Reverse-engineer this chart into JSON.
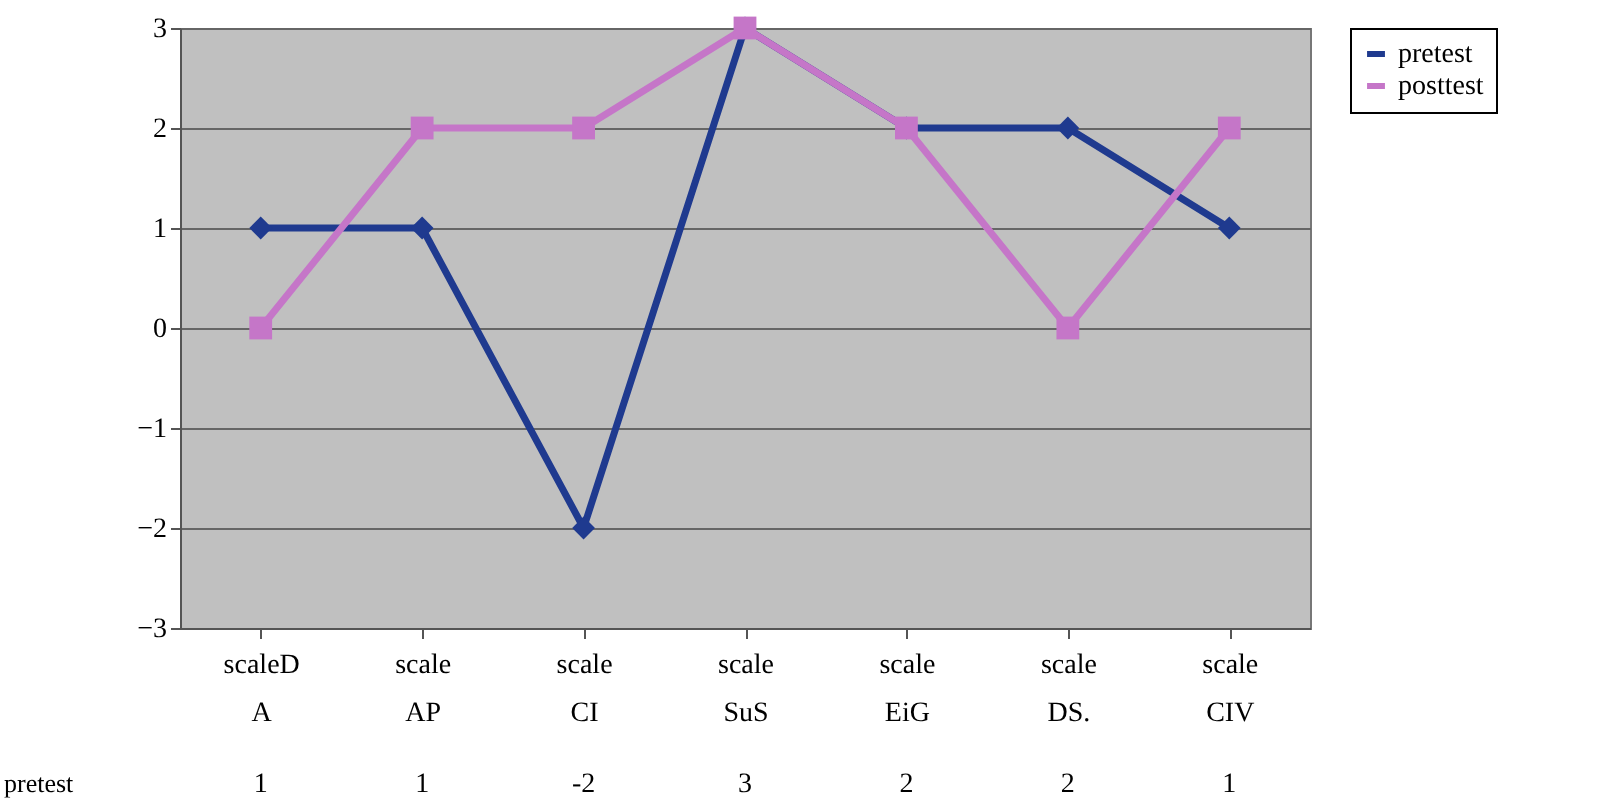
{
  "chart_data": {
    "type": "line",
    "categories": [
      "scaleD A",
      "scale AP",
      "scale CI",
      "scale SuS",
      "scale EiG",
      "scale DS.",
      "scale CIV"
    ],
    "series": [
      {
        "name": "pretest",
        "color": "#1f3a8f",
        "marker": "diamond",
        "values": [
          1,
          1,
          -2,
          3,
          2,
          2,
          1
        ],
        "value_labels": [
          "1",
          "1",
          "-2",
          "3",
          "2",
          "2",
          "1"
        ]
      },
      {
        "name": "posttest",
        "color": "#c576c8",
        "marker": "square",
        "values": [
          0,
          2,
          2,
          3,
          2,
          0,
          2
        ]
      }
    ],
    "ylim": [
      -3,
      3
    ],
    "yticks": [
      -3,
      -2,
      -1,
      0,
      1,
      2,
      3
    ],
    "grid": "y",
    "legend": "right",
    "line_style": "solid"
  }
}
